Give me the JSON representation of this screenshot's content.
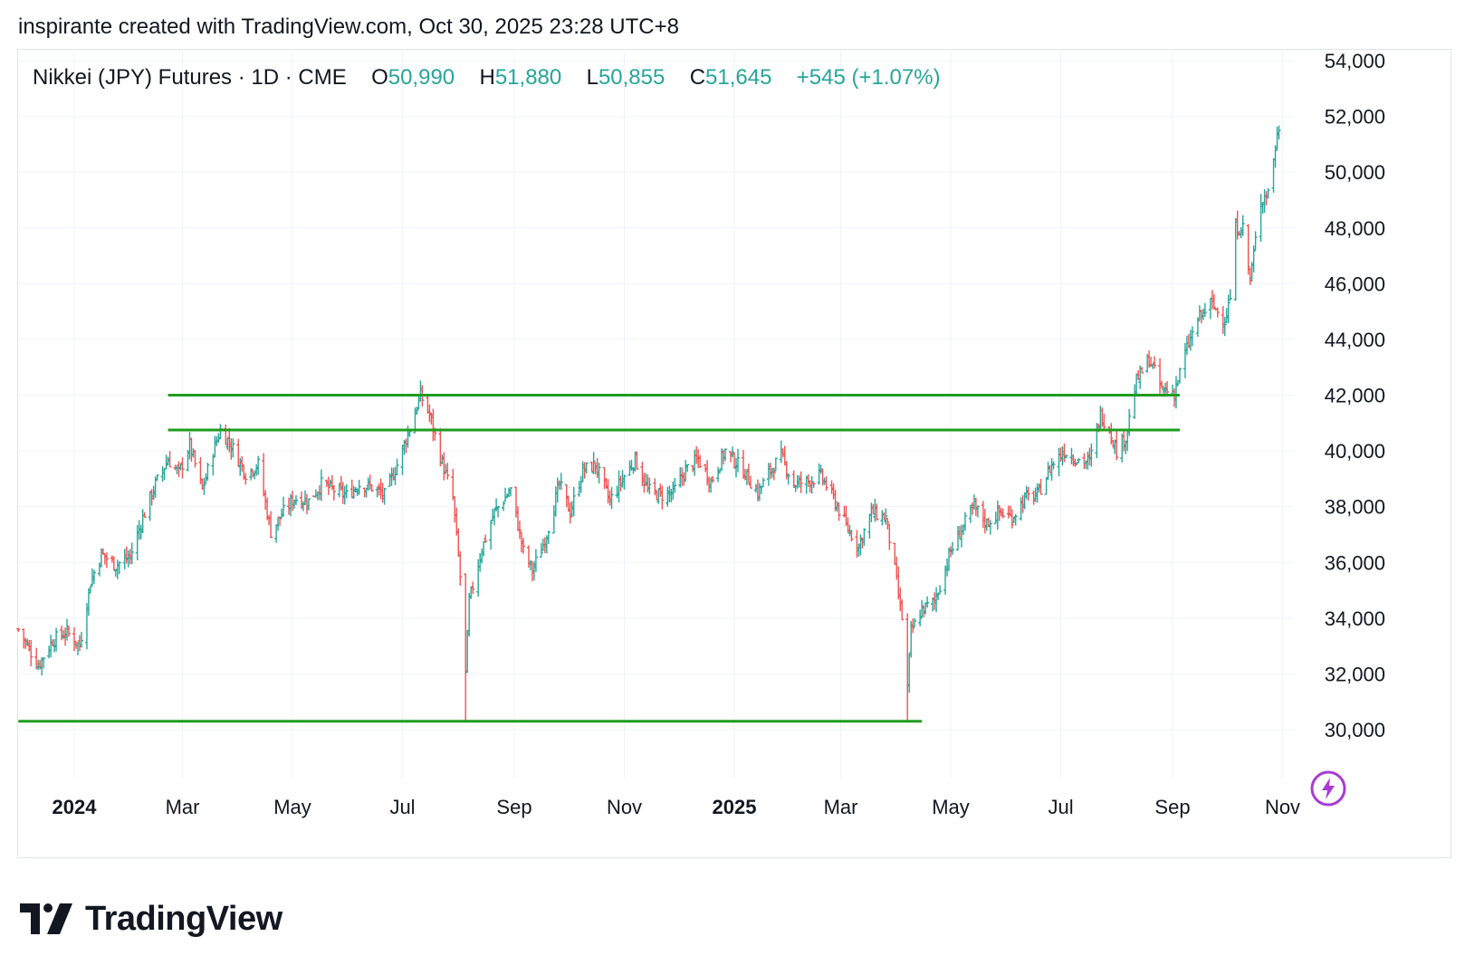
{
  "header": {
    "title": "inspirante created with TradingView.com, Oct 30, 2025 23:28 UTC+8"
  },
  "legend": {
    "symbol": "Nikkei (JPY) Futures · 1D · CME",
    "open_label": "O",
    "open": "50,990",
    "high_label": "H",
    "high": "51,880",
    "low_label": "L",
    "low": "50,855",
    "close_label": "C",
    "close": "51,645",
    "change": "+545 (+1.07%)"
  },
  "branding": {
    "name": "TradingView"
  },
  "icons": {
    "flash": "lightning-bolt-icon",
    "logo": "tradingview-logo-icon"
  },
  "colors": {
    "up": "#26a69a",
    "down": "#ef5350",
    "level_line": "#1f9d1f",
    "accent": "#a83bd4",
    "grid": "#f0f3fa"
  },
  "chart_data": {
    "type": "ohlc",
    "title": "Nikkei (JPY) Futures · 1D · CME",
    "ylim": [
      29000,
      54000
    ],
    "xlim": [
      "2023-12-01",
      "2025-11-05"
    ],
    "y_ticks": [
      30000,
      32000,
      34000,
      36000,
      38000,
      40000,
      42000,
      44000,
      46000,
      48000,
      50000,
      52000,
      54000
    ],
    "y_tick_labels": [
      "30,000",
      "32,000",
      "34,000",
      "36,000",
      "38,000",
      "40,000",
      "42,000",
      "44,000",
      "46,000",
      "48,000",
      "50,000",
      "52,000",
      "54,000"
    ],
    "x_ticks": [
      {
        "date": "2024-01-01",
        "label": "2024",
        "bold": true
      },
      {
        "date": "2024-03-01",
        "label": "Mar",
        "bold": false
      },
      {
        "date": "2024-05-01",
        "label": "May",
        "bold": false
      },
      {
        "date": "2024-07-01",
        "label": "Jul",
        "bold": false
      },
      {
        "date": "2024-09-01",
        "label": "Sep",
        "bold": false
      },
      {
        "date": "2024-11-01",
        "label": "Nov",
        "bold": false
      },
      {
        "date": "2025-01-01",
        "label": "2025",
        "bold": true
      },
      {
        "date": "2025-03-01",
        "label": "Mar",
        "bold": false
      },
      {
        "date": "2025-05-01",
        "label": "May",
        "bold": false
      },
      {
        "date": "2025-07-01",
        "label": "Jul",
        "bold": false
      },
      {
        "date": "2025-09-01",
        "label": "Sep",
        "bold": false
      },
      {
        "date": "2025-11-01",
        "label": "Nov",
        "bold": false
      }
    ],
    "level_lines": [
      {
        "y": 42000,
        "from": "2024-02-22",
        "to": "2025-09-05"
      },
      {
        "y": 40750,
        "from": "2024-02-22",
        "to": "2025-09-05"
      },
      {
        "y": 30300,
        "from": "2023-12-01",
        "to": "2025-04-15"
      }
    ],
    "anchors": [
      [
        "2023-12-01",
        33600
      ],
      [
        "2023-12-12",
        32300
      ],
      [
        "2023-12-20",
        33200
      ],
      [
        "2023-12-28",
        33500
      ],
      [
        "2024-01-04",
        33000
      ],
      [
        "2024-01-10",
        35300
      ],
      [
        "2024-01-16",
        36300
      ],
      [
        "2024-01-24",
        35900
      ],
      [
        "2024-02-01",
        36200
      ],
      [
        "2024-02-08",
        37600
      ],
      [
        "2024-02-15",
        38800
      ],
      [
        "2024-02-22",
        39700
      ],
      [
        "2024-02-28",
        39200
      ],
      [
        "2024-03-05",
        40200
      ],
      [
        "2024-03-12",
        38600
      ],
      [
        "2024-03-18",
        40000
      ],
      [
        "2024-03-22",
        40750
      ],
      [
        "2024-03-28",
        40200
      ],
      [
        "2024-04-05",
        39200
      ],
      [
        "2024-04-12",
        39500
      ],
      [
        "2024-04-19",
        37100
      ],
      [
        "2024-04-26",
        37800
      ],
      [
        "2024-05-02",
        38300
      ],
      [
        "2024-05-10",
        38200
      ],
      [
        "2024-05-17",
        38800
      ],
      [
        "2024-05-24",
        38600
      ],
      [
        "2024-05-31",
        38400
      ],
      [
        "2024-06-07",
        38800
      ],
      [
        "2024-06-14",
        38700
      ],
      [
        "2024-06-21",
        38400
      ],
      [
        "2024-06-28",
        39500
      ],
      [
        "2024-07-05",
        40800
      ],
      [
        "2024-07-11",
        42000
      ],
      [
        "2024-07-16",
        41300
      ],
      [
        "2024-07-22",
        39800
      ],
      [
        "2024-07-29",
        38300
      ],
      [
        "2024-08-02",
        35500
      ],
      [
        "2024-08-05",
        32000
      ],
      [
        "2024-08-07",
        34600
      ],
      [
        "2024-08-14",
        36500
      ],
      [
        "2024-08-21",
        37800
      ],
      [
        "2024-08-30",
        38600
      ],
      [
        "2024-09-06",
        36400
      ],
      [
        "2024-09-11",
        35700
      ],
      [
        "2024-09-18",
        36800
      ],
      [
        "2024-09-26",
        38800
      ],
      [
        "2024-10-02",
        37800
      ],
      [
        "2024-10-09",
        39300
      ],
      [
        "2024-10-16",
        39500
      ],
      [
        "2024-10-24",
        38200
      ],
      [
        "2024-10-31",
        39000
      ],
      [
        "2024-11-07",
        39700
      ],
      [
        "2024-11-14",
        38600
      ],
      [
        "2024-11-21",
        38400
      ],
      [
        "2024-11-28",
        38500
      ],
      [
        "2024-12-05",
        39300
      ],
      [
        "2024-12-12",
        39700
      ],
      [
        "2024-12-19",
        38900
      ],
      [
        "2024-12-27",
        40000
      ],
      [
        "2025-01-06",
        39300
      ],
      [
        "2025-01-14",
        38500
      ],
      [
        "2025-01-21",
        39300
      ],
      [
        "2025-01-27",
        39800
      ],
      [
        "2025-02-03",
        38800
      ],
      [
        "2025-02-10",
        38900
      ],
      [
        "2025-02-18",
        39100
      ],
      [
        "2025-02-25",
        38300
      ],
      [
        "2025-03-04",
        37300
      ],
      [
        "2025-03-11",
        36600
      ],
      [
        "2025-03-18",
        37800
      ],
      [
        "2025-03-26",
        37600
      ],
      [
        "2025-03-31",
        35700
      ],
      [
        "2025-04-04",
        34000
      ],
      [
        "2025-04-07",
        31500
      ],
      [
        "2025-04-09",
        33500
      ],
      [
        "2025-04-15",
        34300
      ],
      [
        "2025-04-22",
        34600
      ],
      [
        "2025-05-01",
        36400
      ],
      [
        "2025-05-08",
        37300
      ],
      [
        "2025-05-14",
        38000
      ],
      [
        "2025-05-21",
        37400
      ],
      [
        "2025-05-28",
        37800
      ],
      [
        "2025-06-04",
        37600
      ],
      [
        "2025-06-11",
        38300
      ],
      [
        "2025-06-18",
        38400
      ],
      [
        "2025-06-26",
        39500
      ],
      [
        "2025-07-03",
        40000
      ],
      [
        "2025-07-10",
        39700
      ],
      [
        "2025-07-17",
        39600
      ],
      [
        "2025-07-23",
        41300
      ],
      [
        "2025-07-28",
        40800
      ],
      [
        "2025-08-01",
        40000
      ],
      [
        "2025-08-06",
        40500
      ],
      [
        "2025-08-12",
        42500
      ],
      [
        "2025-08-19",
        43300
      ],
      [
        "2025-08-26",
        42200
      ],
      [
        "2025-09-02",
        42100
      ],
      [
        "2025-09-08",
        43500
      ],
      [
        "2025-09-15",
        44700
      ],
      [
        "2025-09-22",
        45300
      ],
      [
        "2025-09-30",
        44700
      ],
      [
        "2025-10-03",
        45500
      ],
      [
        "2025-10-06",
        48000
      ],
      [
        "2025-10-10",
        48000
      ],
      [
        "2025-10-14",
        46100
      ],
      [
        "2025-10-20",
        49000
      ],
      [
        "2025-10-24",
        49300
      ],
      [
        "2025-10-27",
        50500
      ],
      [
        "2025-10-30",
        51645
      ]
    ]
  }
}
